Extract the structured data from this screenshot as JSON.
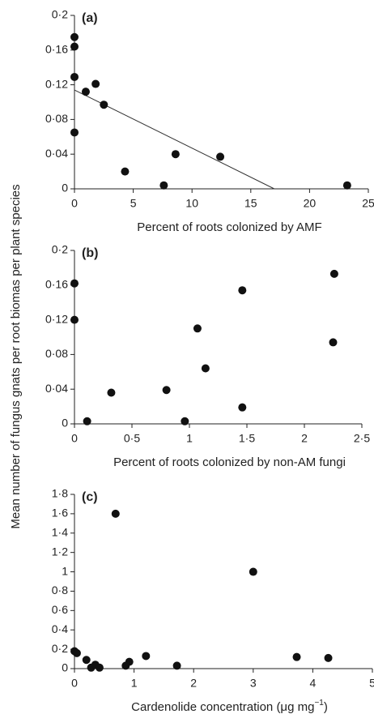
{
  "ylabel": "Mean number of fungus gnats per root biomas per plant species",
  "chart_data": [
    {
      "type": "scatter",
      "panel": "(a)",
      "xlabel": "Percent of roots colonized by AMF",
      "color": "#111111",
      "x": [
        0,
        0,
        0,
        0,
        0.96,
        1.8,
        2.5,
        4.3,
        7.6,
        8.6,
        12.4,
        23.2
      ],
      "values": [
        0.175,
        0.164,
        0.129,
        0.065,
        0.112,
        0.121,
        0.097,
        0.02,
        0.004,
        0.04,
        0.037,
        0.004
      ],
      "fit": {
        "x": [
          0,
          17
        ],
        "y": [
          0.114,
          0
        ]
      },
      "xlim": [
        0,
        25
      ],
      "xticks": [
        0,
        5,
        10,
        15,
        20,
        25
      ],
      "ylim": [
        0,
        0.2
      ],
      "yticks": [
        0,
        {
          "value": 0.04,
          "label": "0·04"
        },
        {
          "value": 0.08,
          "label": "0·08"
        },
        {
          "value": 0.12,
          "label": "0·12"
        },
        {
          "value": 0.16,
          "label": "0·16"
        },
        {
          "value": 0.2,
          "label": "0·2"
        }
      ]
    },
    {
      "type": "scatter",
      "panel": "(b)",
      "xlabel": "Percent of roots colonized by non-AM fungi",
      "color": "#111111",
      "x": [
        0,
        0,
        0.11,
        0.32,
        0.8,
        0.96,
        1.07,
        1.14,
        1.46,
        1.46,
        2.26,
        2.25
      ],
      "values": [
        0.162,
        0.12,
        0.003,
        0.036,
        0.039,
        0.003,
        0.11,
        0.064,
        0.154,
        0.019,
        0.173,
        0.094
      ],
      "xlim": [
        0,
        2.5
      ],
      "xticks": [
        0,
        {
          "value": 0.5,
          "label": "0·5"
        },
        1,
        {
          "value": 1.5,
          "label": "1·5"
        },
        2,
        {
          "value": 2.5,
          "label": "2·5"
        }
      ],
      "ylim": [
        0,
        0.2
      ],
      "yticks": [
        0,
        {
          "value": 0.04,
          "label": "0·04"
        },
        {
          "value": 0.08,
          "label": "0·08"
        },
        {
          "value": 0.12,
          "label": "0·12"
        },
        {
          "value": 0.16,
          "label": "0·16"
        },
        {
          "value": 0.2,
          "label": "0·2"
        }
      ]
    },
    {
      "type": "scatter",
      "panel": "(c)",
      "xlabel": "Cardenolide concentration (μg mg",
      "xlabel_sup": "−1",
      "xlabel_end": ")",
      "color": "#111111",
      "x": [
        0,
        0.04,
        0.2,
        0.28,
        0.35,
        0.42,
        0.69,
        0.86,
        0.92,
        1.2,
        1.72,
        3.0,
        3.73,
        4.26
      ],
      "values": [
        0.18,
        0.16,
        0.09,
        0.01,
        0.04,
        0.01,
        1.6,
        0.03,
        0.07,
        0.13,
        0.03,
        1.0,
        0.12,
        0.11
      ],
      "xlim": [
        0,
        5
      ],
      "xticks": [
        0,
        1,
        2,
        3,
        4,
        5
      ],
      "ylim": [
        0,
        1.8
      ],
      "yticks": [
        0,
        {
          "value": 0.2,
          "label": "0·2"
        },
        {
          "value": 0.4,
          "label": "0·4"
        },
        {
          "value": 0.6,
          "label": "0·6"
        },
        {
          "value": 0.8,
          "label": "0·8"
        },
        1,
        {
          "value": 1.2,
          "label": "1·2"
        },
        {
          "value": 1.4,
          "label": "1·4"
        },
        {
          "value": 1.6,
          "label": "1·6"
        },
        {
          "value": 1.8,
          "label": "1·8"
        }
      ]
    }
  ]
}
